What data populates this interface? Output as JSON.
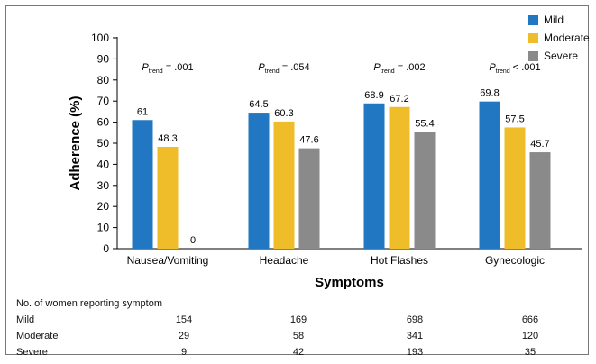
{
  "chart_data": {
    "type": "bar",
    "categories": [
      "Nausea/Vomiting",
      "Headache",
      "Hot Flashes",
      "Gynecologic"
    ],
    "series": [
      {
        "name": "Mild",
        "values": [
          61,
          64.5,
          68.9,
          69.8
        ]
      },
      {
        "name": "Moderate",
        "values": [
          48.3,
          60.3,
          67.2,
          57.5
        ]
      },
      {
        "name": "Severe",
        "values": [
          0,
          47.6,
          55.4,
          45.7
        ]
      }
    ],
    "data_labels": [
      [
        "61",
        "48.3",
        "0"
      ],
      [
        "64.5",
        "60.3",
        "47.6"
      ],
      [
        "68.9",
        "67.2",
        "55.4"
      ],
      [
        "69.8",
        "57.5",
        "45.7"
      ]
    ],
    "colors": [
      "#2277c3",
      "#f0bd2a",
      "#8a8a8a"
    ],
    "ptrend": [
      {
        "op": "=",
        "value": ".001"
      },
      {
        "op": "=",
        "value": ".054"
      },
      {
        "op": "=",
        "value": ".002"
      },
      {
        "op": "<",
        "value": ".001"
      }
    ],
    "p_label": "P",
    "p_subscript": "trend",
    "xlabel": "Symptoms",
    "ylabel": "Adherence (%)",
    "ylim": [
      0,
      100
    ],
    "yticks": [
      0,
      10,
      20,
      30,
      40,
      50,
      60,
      70,
      80,
      90,
      100
    ],
    "legend_position": "top-right"
  },
  "counts_table": {
    "title": "No. of women reporting symptom",
    "rows": [
      {
        "label": "Mild",
        "values": [
          "154",
          "169",
          "698",
          "666"
        ]
      },
      {
        "label": "Moderate",
        "values": [
          "29",
          "58",
          "341",
          "120"
        ]
      },
      {
        "label": "Severe",
        "values": [
          "9",
          "42",
          "193",
          "35"
        ]
      }
    ]
  }
}
